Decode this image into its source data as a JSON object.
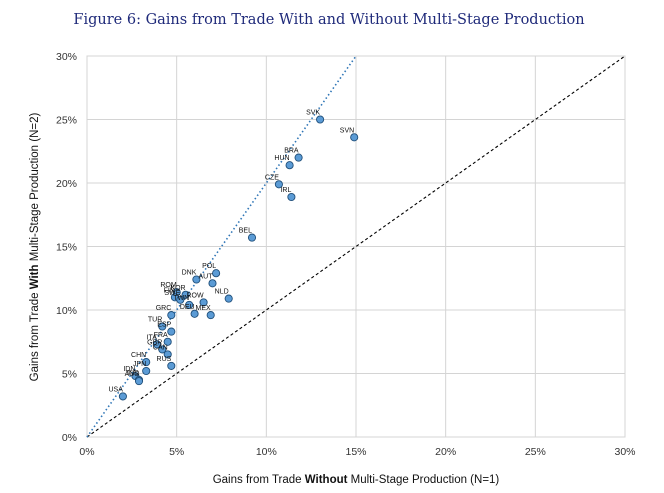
{
  "chart_data": {
    "type": "scatter",
    "title": "Figure 6: Gains from Trade With and Without Multi-Stage Production",
    "xlabel": {
      "prefix": "Gains from Trade ",
      "bold": "Without",
      "suffix": " Multi-Stage Production (N=1)"
    },
    "ylabel": {
      "prefix": "Gains from Trade ",
      "bold": "With",
      "suffix": " Multi-Stage Production (N=2)"
    },
    "xlim": [
      0,
      30
    ],
    "ylim": [
      0,
      30
    ],
    "x_ticks": [
      0,
      5,
      10,
      15,
      20,
      25,
      30
    ],
    "y_ticks": [
      0,
      5,
      10,
      15,
      20,
      25,
      30
    ],
    "x_tick_labels": [
      "0%",
      "5%",
      "10%",
      "15%",
      "20%",
      "25%",
      "30%"
    ],
    "y_tick_labels": [
      "0%",
      "5%",
      "10%",
      "15%",
      "20%",
      "25%",
      "30%"
    ],
    "grid": true,
    "lines": [
      {
        "name": "45-degree line",
        "style": "dashed",
        "color": "#000000",
        "x": [
          0,
          30
        ],
        "y": [
          0,
          30
        ]
      },
      {
        "name": "fitted line",
        "style": "dotted",
        "color": "#2e75b6",
        "x": [
          0,
          15
        ],
        "y": [
          0,
          30
        ]
      }
    ],
    "points": [
      {
        "label": "SVK",
        "x": 13.0,
        "y": 25.0
      },
      {
        "label": "SVN",
        "x": 14.9,
        "y": 23.6
      },
      {
        "label": "BRA",
        "x": 11.8,
        "y": 22.0
      },
      {
        "label": "HUN",
        "x": 11.3,
        "y": 21.4
      },
      {
        "label": "CZE",
        "x": 10.7,
        "y": 19.9
      },
      {
        "label": "IRL",
        "x": 11.4,
        "y": 18.9
      },
      {
        "label": "BEL",
        "x": 9.2,
        "y": 15.7
      },
      {
        "label": "POL",
        "x": 7.2,
        "y": 12.9
      },
      {
        "label": "DNK",
        "x": 6.1,
        "y": 12.4
      },
      {
        "label": "AUT",
        "x": 7.0,
        "y": 12.1
      },
      {
        "label": "NLD",
        "x": 7.9,
        "y": 10.9
      },
      {
        "label": "ROM",
        "x": 5.0,
        "y": 11.4
      },
      {
        "label": "FIN",
        "x": 4.9,
        "y": 11.0
      },
      {
        "label": "KOR",
        "x": 5.5,
        "y": 11.2
      },
      {
        "label": "SWE",
        "x": 5.2,
        "y": 10.8
      },
      {
        "label": "TWN",
        "x": 5.7,
        "y": 10.4
      },
      {
        "label": "ROW",
        "x": 6.5,
        "y": 10.6
      },
      {
        "label": "DEU",
        "x": 6.0,
        "y": 9.7
      },
      {
        "label": "MEX",
        "x": 6.9,
        "y": 9.6
      },
      {
        "label": "GRC",
        "x": 4.7,
        "y": 9.6
      },
      {
        "label": "TUR",
        "x": 4.2,
        "y": 8.7
      },
      {
        "label": "ESP",
        "x": 4.7,
        "y": 8.3
      },
      {
        "label": "FRA",
        "x": 4.5,
        "y": 7.5
      },
      {
        "label": "ITA",
        "x": 3.9,
        "y": 7.3
      },
      {
        "label": "GBR",
        "x": 4.2,
        "y": 6.9
      },
      {
        "label": "CAN",
        "x": 4.5,
        "y": 6.5
      },
      {
        "label": "RUS",
        "x": 4.7,
        "y": 5.6
      },
      {
        "label": "CHN",
        "x": 3.3,
        "y": 5.9
      },
      {
        "label": "JPN",
        "x": 3.3,
        "y": 5.2
      },
      {
        "label": "IDN",
        "x": 2.7,
        "y": 4.8
      },
      {
        "label": "IND",
        "x": 2.9,
        "y": 4.5
      },
      {
        "label": "AUS",
        "x": 2.9,
        "y": 4.4
      },
      {
        "label": "USA",
        "x": 2.0,
        "y": 3.2
      }
    ]
  }
}
